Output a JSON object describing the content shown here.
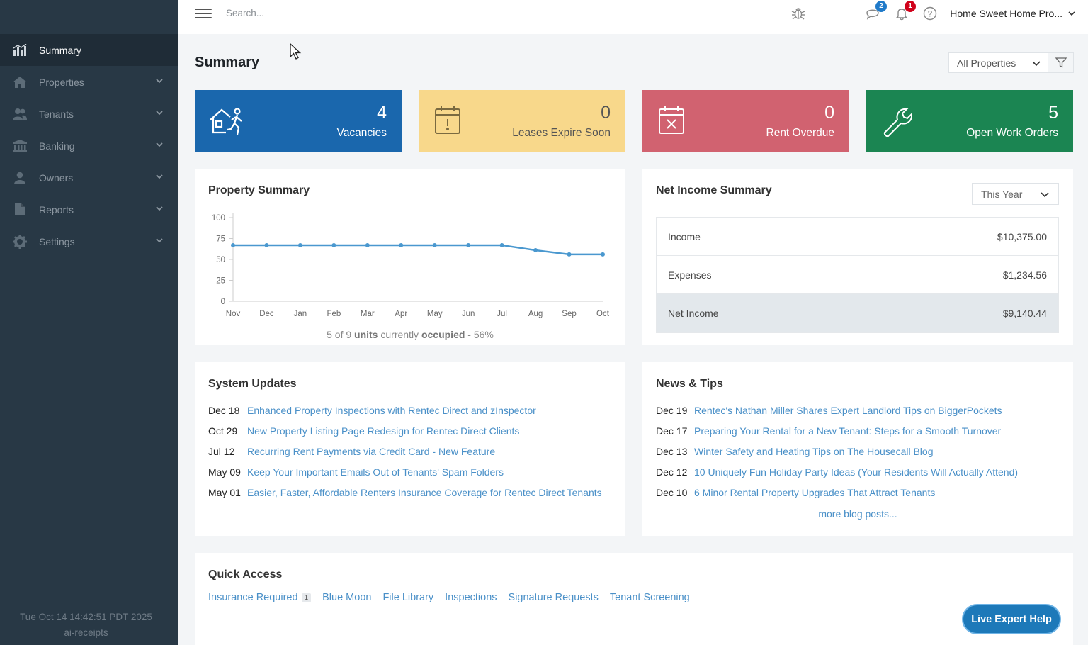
{
  "sidebar": {
    "items": [
      {
        "label": "Summary",
        "icon": "chart-bar-icon"
      },
      {
        "label": "Properties",
        "icon": "house-icon"
      },
      {
        "label": "Tenants",
        "icon": "users-icon"
      },
      {
        "label": "Banking",
        "icon": "bank-icon"
      },
      {
        "label": "Owners",
        "icon": "user-icon"
      },
      {
        "label": "Reports",
        "icon": "file-icon"
      },
      {
        "label": "Settings",
        "icon": "gear-icon"
      }
    ],
    "footer": {
      "timestamp": "Tue Oct 14 14:42:51 PDT 2025",
      "app_name": "ai-receipts"
    }
  },
  "topbar": {
    "search_placeholder": "Search...",
    "messages_count": "2",
    "notifications_count": "1",
    "account_name": "Home Sweet Home Pro..."
  },
  "page": {
    "title": "Summary",
    "property_filter": "All Properties"
  },
  "stats": [
    {
      "count": "4",
      "label": "Vacancies",
      "color": "#1a67ad"
    },
    {
      "count": "0",
      "label": "Leases Expire Soon",
      "color": "#f8d88b"
    },
    {
      "count": "0",
      "label": "Rent Overdue",
      "color": "#d16270"
    },
    {
      "count": "5",
      "label": "Open Work Orders",
      "color": "#1b8552"
    }
  ],
  "property_summary": {
    "title": "Property Summary",
    "occupancy": {
      "prefix": "5 of 9 ",
      "units": "units",
      "mid": " currently ",
      "occupied": "occupied",
      "suffix": " - 56%"
    }
  },
  "chart_data": {
    "type": "line",
    "categories": [
      "Nov",
      "Dec",
      "Jan",
      "Feb",
      "Mar",
      "Apr",
      "May",
      "Jun",
      "Jul",
      "Aug",
      "Sep",
      "Oct"
    ],
    "values": [
      67,
      67,
      67,
      67,
      67,
      67,
      67,
      67,
      67,
      61,
      56,
      56
    ],
    "yticks": [
      0,
      25,
      50,
      75,
      100
    ],
    "ylim": [
      0,
      100
    ],
    "color": "#4a98cf"
  },
  "net_income": {
    "title": "Net Income Summary",
    "range": "This Year",
    "rows": [
      {
        "label": "Income",
        "value": "$10,375.00"
      },
      {
        "label": "Expenses",
        "value": "$1,234.56"
      },
      {
        "label": "Net Income",
        "value": "$9,140.44"
      }
    ]
  },
  "system_updates": {
    "title": "System Updates",
    "items": [
      {
        "date": "Dec 18",
        "text": "Enhanced Property Inspections with Rentec Direct and zInspector"
      },
      {
        "date": "Oct 29",
        "text": "New Property Listing Page Redesign for Rentec Direct Clients"
      },
      {
        "date": "Jul 12",
        "text": "Recurring Rent Payments via Credit Card - New Feature"
      },
      {
        "date": "May 09",
        "text": "Keep Your Important Emails Out of Tenants' Spam Folders"
      },
      {
        "date": "May 01",
        "text": "Easier, Faster, Affordable Renters Insurance Coverage for Rentec Direct Tenants"
      }
    ]
  },
  "news": {
    "title": "News & Tips",
    "items": [
      {
        "date": "Dec 19",
        "text": "Rentec's Nathan Miller Shares Expert Landlord Tips on BiggerPockets"
      },
      {
        "date": "Dec 17",
        "text": "Preparing Your Rental for a New Tenant: Steps for a Smooth Turnover"
      },
      {
        "date": "Dec 13",
        "text": "Winter Safety and Heating Tips on The Housecall Blog"
      },
      {
        "date": "Dec 12",
        "text": "10 Uniquely Fun Holiday Party Ideas (Your Residents Will Actually Attend)"
      },
      {
        "date": "Dec 10",
        "text": "6 Minor Rental Property Upgrades That Attract Tenants"
      }
    ],
    "more": "more blog posts..."
  },
  "quick_access": {
    "title": "Quick Access",
    "links": [
      {
        "label": "Insurance Required",
        "count": "1"
      },
      {
        "label": "Blue Moon"
      },
      {
        "label": "File Library"
      },
      {
        "label": "Inspections"
      },
      {
        "label": "Signature Requests"
      },
      {
        "label": "Tenant Screening"
      }
    ]
  },
  "help_button": "Live Expert Help"
}
